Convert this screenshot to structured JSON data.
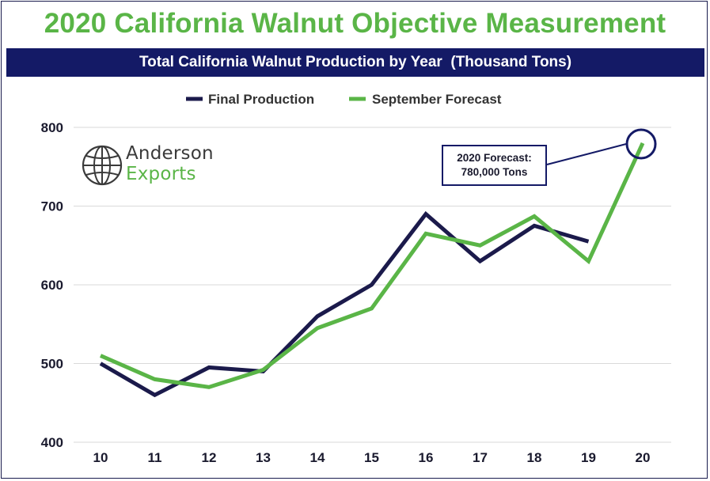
{
  "title": "2020 California Walnut Objective Measurement",
  "subtitle": "Total California Walnut Production by Year  (Thousand Tons)",
  "logo": {
    "line1": "Anderson",
    "line2": "Exports"
  },
  "annotation": {
    "line1": "2020 Forecast:",
    "line2": "780,000 Tons"
  },
  "colors": {
    "final": "#1b1a4b",
    "forecast": "#5ab547",
    "title": "#5ab547",
    "banner": "#141a66",
    "grid": "#d9d9d9"
  },
  "chart_data": {
    "type": "line",
    "title": "Total California Walnut Production by Year  (Thousand Tons)",
    "xlabel": "",
    "ylabel": "",
    "categories": [
      "10",
      "11",
      "12",
      "13",
      "14",
      "15",
      "16",
      "17",
      "18",
      "19",
      "20"
    ],
    "ylim": [
      400,
      800
    ],
    "yticks": [
      "400",
      "500",
      "600",
      "700",
      "800"
    ],
    "legend_position": "top-center",
    "series": [
      {
        "name": "Final Production",
        "values": [
          500,
          460,
          495,
          490,
          560,
          600,
          690,
          630,
          675,
          655,
          null
        ]
      },
      {
        "name": "September Forecast",
        "values": [
          510,
          480,
          470,
          492,
          545,
          570,
          665,
          650,
          687,
          630,
          780
        ]
      }
    ]
  }
}
